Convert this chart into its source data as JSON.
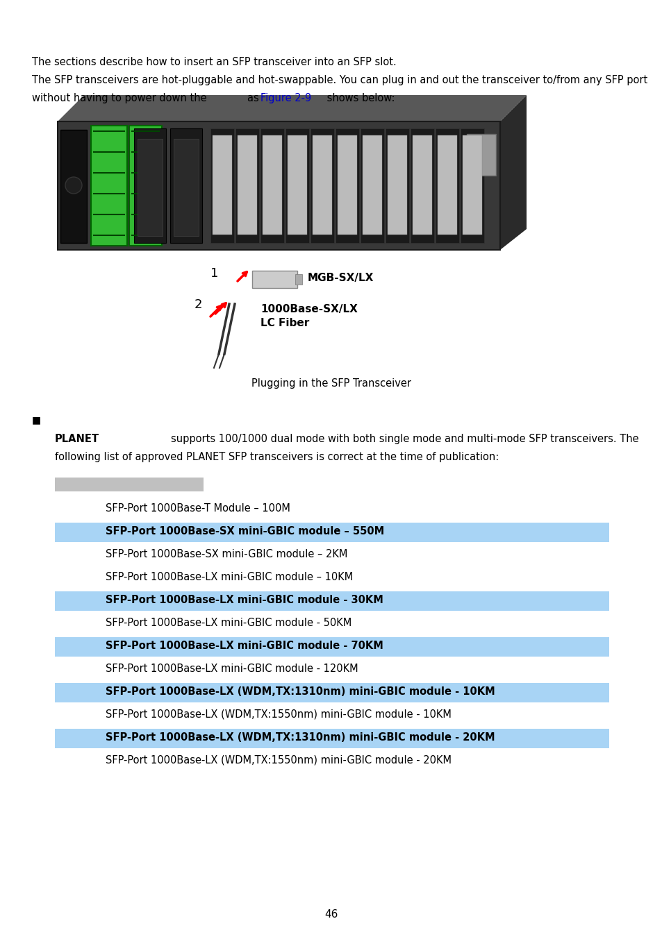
{
  "background_color": "#ffffff",
  "page_number": "46",
  "highlight_color": "#a8d4f5",
  "table_rows": [
    {
      "text": "SFP-Port 1000Base-T Module – 100M",
      "highlighted": false
    },
    {
      "text": "SFP-Port 1000Base-SX mini-GBIC module – 550M",
      "highlighted": true
    },
    {
      "text": "SFP-Port 1000Base-SX mini-GBIC module – 2KM",
      "highlighted": false
    },
    {
      "text": "SFP-Port 1000Base-LX mini-GBIC module – 10KM",
      "highlighted": false
    },
    {
      "text": "SFP-Port 1000Base-LX mini-GBIC module - 30KM",
      "highlighted": true
    },
    {
      "text": "SFP-Port 1000Base-LX mini-GBIC module - 50KM",
      "highlighted": false
    },
    {
      "text": "SFP-Port 1000Base-LX mini-GBIC module - 70KM",
      "highlighted": true
    },
    {
      "text": "SFP-Port 1000Base-LX mini-GBIC module - 120KM",
      "highlighted": false
    },
    {
      "text": "SFP-Port 1000Base-LX (WDM,TX:1310nm) mini-GBIC module - 10KM",
      "highlighted": true
    },
    {
      "text": "SFP-Port 1000Base-LX (WDM,TX:1550nm) mini-GBIC module - 10KM",
      "highlighted": false
    },
    {
      "text": "SFP-Port 1000Base-LX (WDM,TX:1310nm) mini-GBIC module - 20KM",
      "highlighted": true
    },
    {
      "text": "SFP-Port 1000Base-LX (WDM,TX:1550nm) mini-GBIC module - 20KM",
      "highlighted": false
    }
  ],
  "font_size_body": 10.5,
  "font_size_page": 11
}
